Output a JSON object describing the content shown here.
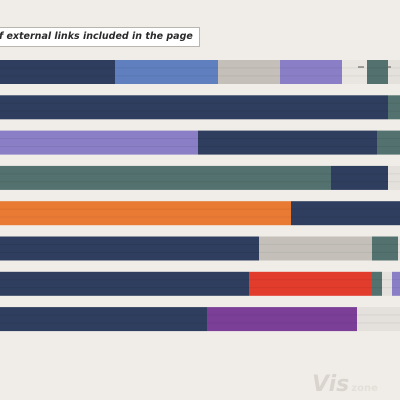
{
  "caption": "f external links included in the page",
  "watermark": {
    "main": "Vis",
    "sub": "zone"
  },
  "chart_data": {
    "type": "bar",
    "orientation": "horizontal",
    "stacked": true,
    "title": "f external links included in the page",
    "grid": false,
    "bars": [
      {
        "segments": [
          {
            "value": 115,
            "color": "#2f3e5e"
          },
          {
            "value": 103,
            "color": "#5f7fbf"
          },
          {
            "value": 62,
            "color": "#c4c0b9"
          },
          {
            "value": 62,
            "color": "#8a7fc6"
          },
          {
            "value": 25,
            "color": "#e9e6e1"
          },
          {
            "value": 21,
            "color": "#53716e"
          },
          {
            "value": 12,
            "color": "#e4e1dc"
          }
        ]
      },
      {
        "segments": [
          {
            "value": 388,
            "color": "#2f3e5e"
          },
          {
            "value": 12,
            "color": "#53716e"
          }
        ]
      },
      {
        "segments": [
          {
            "value": 198,
            "color": "#8a7fc6"
          },
          {
            "value": 179,
            "color": "#2f3e5e"
          },
          {
            "value": 23,
            "color": "#53716e"
          }
        ]
      },
      {
        "segments": [
          {
            "value": 331,
            "color": "#53716e"
          },
          {
            "value": 57,
            "color": "#2f3e5e"
          },
          {
            "value": 12,
            "color": "#e4e1dc"
          }
        ]
      },
      {
        "segments": [
          {
            "value": 291,
            "color": "#e97a33"
          },
          {
            "value": 109,
            "color": "#2f3e5e"
          }
        ]
      },
      {
        "segments": [
          {
            "value": 259,
            "color": "#2f3e5e"
          },
          {
            "value": 113,
            "color": "#c4c0b9"
          },
          {
            "value": 26,
            "color": "#53716e"
          },
          {
            "value": 2,
            "color": "#e4e1dc"
          }
        ]
      },
      {
        "segments": [
          {
            "value": 249,
            "color": "#2f3e5e"
          },
          {
            "value": 123,
            "color": "#e23c2d"
          },
          {
            "value": 10,
            "color": "#53716e"
          },
          {
            "value": 10,
            "color": "#e4e1dc"
          },
          {
            "value": 8,
            "color": "#8a7fc6"
          }
        ]
      },
      {
        "segments": [
          {
            "value": 207,
            "color": "#2f3e5e"
          },
          {
            "value": 150,
            "color": "#7b3f98"
          },
          {
            "value": 43,
            "color": "#e4e1dc"
          }
        ]
      }
    ]
  }
}
